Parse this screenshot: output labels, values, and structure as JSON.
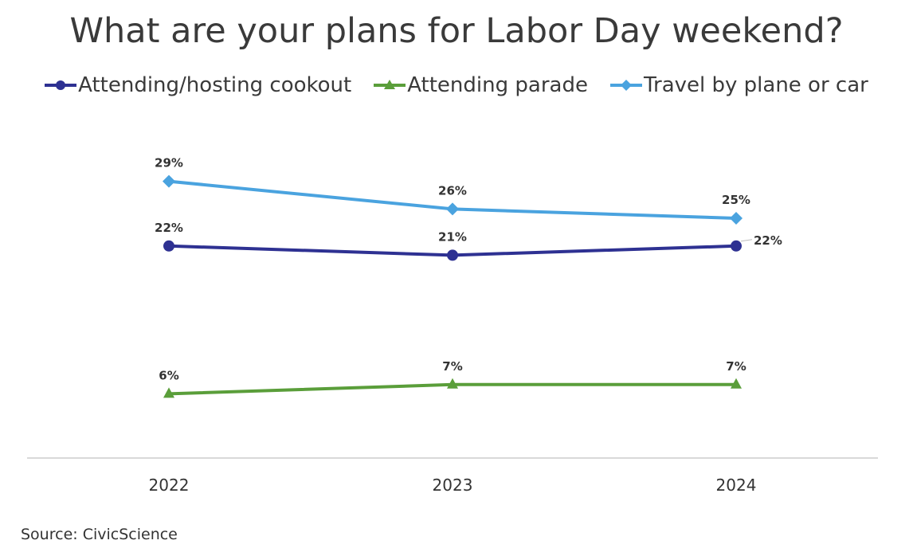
{
  "chart_data": {
    "type": "line",
    "title": "What are your plans for Labor Day weekend?",
    "categories": [
      "2022",
      "2023",
      "2024"
    ],
    "series": [
      {
        "name": "Attending/hosting cookout",
        "values": [
          22,
          21,
          22
        ],
        "labels": [
          "22%",
          "21%",
          "22%"
        ],
        "color": "#2e3192",
        "marker": "circle"
      },
      {
        "name": "Attending parade",
        "values": [
          6,
          7,
          7
        ],
        "labels": [
          "6%",
          "7%",
          "7%"
        ],
        "color": "#5a9e3a",
        "marker": "triangle"
      },
      {
        "name": "Travel by plane or car",
        "values": [
          29,
          26,
          25
        ],
        "labels": [
          "29%",
          "26%",
          "25%"
        ],
        "color": "#4aa3df",
        "marker": "diamond"
      }
    ],
    "xlabel": "",
    "ylabel": "",
    "grid": false,
    "legend_position": "top",
    "source": "Source: CivicScience"
  }
}
